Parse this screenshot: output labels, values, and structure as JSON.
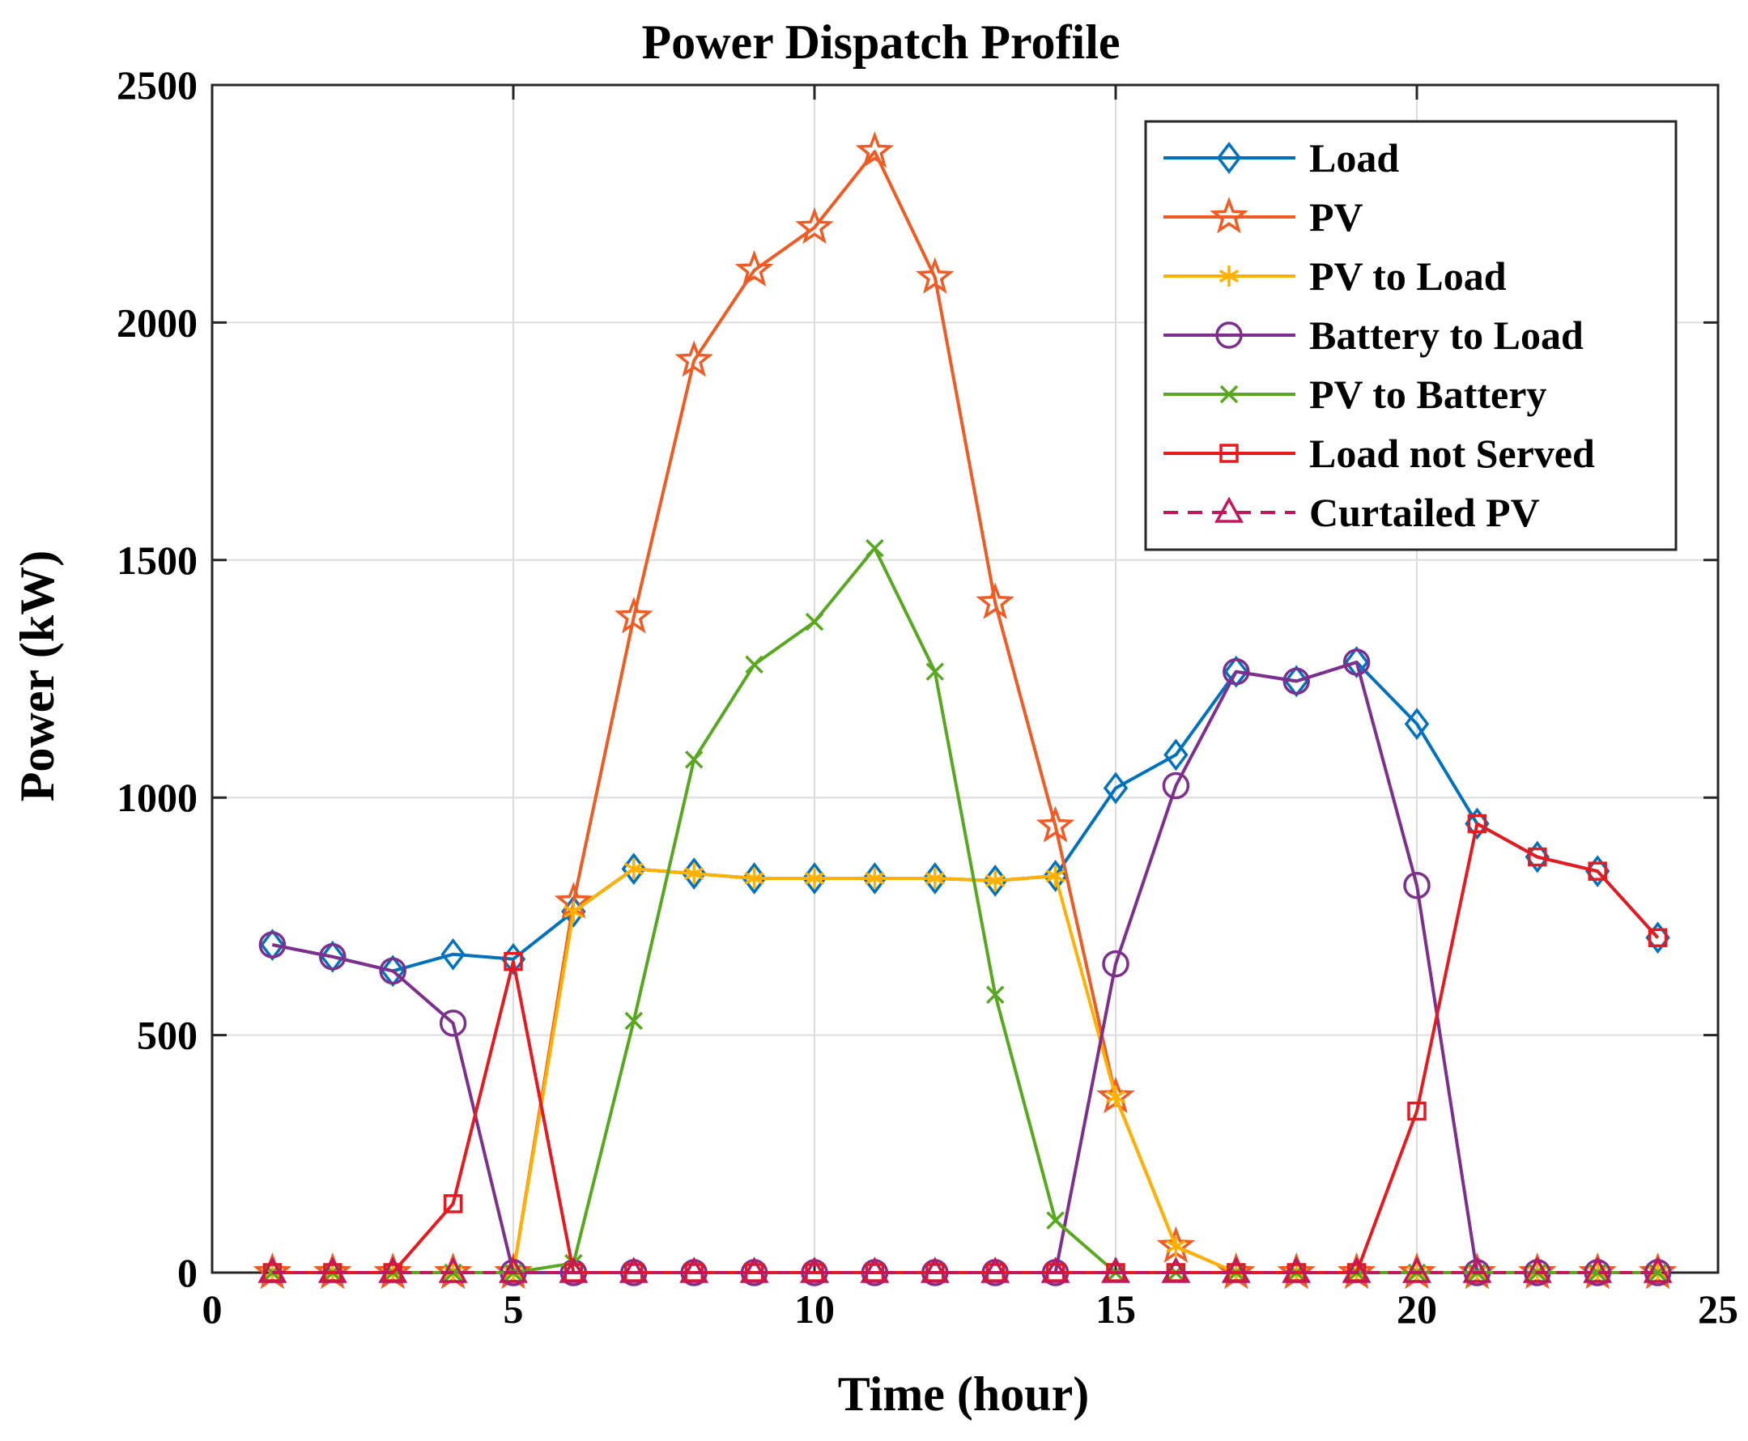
{
  "chart_data": {
    "type": "line",
    "title": "Power Dispatch Profile",
    "xlabel": "Time (hour)",
    "ylabel": "Power (kW)",
    "xlim": [
      0,
      25
    ],
    "ylim": [
      0,
      2500
    ],
    "xticks": [
      0,
      5,
      10,
      15,
      20,
      25
    ],
    "yticks": [
      0,
      500,
      1000,
      1500,
      2000,
      2500
    ],
    "grid": true,
    "legend_position": "top-right",
    "x": [
      1,
      2,
      3,
      4,
      5,
      6,
      7,
      8,
      9,
      10,
      11,
      12,
      13,
      14,
      15,
      16,
      17,
      18,
      19,
      20,
      21,
      22,
      23,
      24
    ],
    "series": [
      {
        "name": "Load",
        "color": "#0072BD",
        "marker": "diamond",
        "dash": "solid",
        "values": [
          690,
          665,
          635,
          670,
          660,
          760,
          850,
          840,
          830,
          830,
          830,
          830,
          825,
          835,
          1020,
          1090,
          1265,
          1245,
          1285,
          1155,
          945,
          875,
          845,
          705
        ]
      },
      {
        "name": "PV",
        "color": "#F05A23",
        "marker": "pentagram",
        "dash": "solid",
        "values": [
          0,
          0,
          0,
          0,
          0,
          780,
          1380,
          1920,
          2110,
          2200,
          2360,
          2095,
          1410,
          940,
          370,
          55,
          0,
          0,
          0,
          0,
          0,
          0,
          0,
          0
        ]
      },
      {
        "name": "PV to Load",
        "color": "#FFB000",
        "marker": "asterisk",
        "dash": "solid",
        "values": [
          0,
          0,
          0,
          0,
          0,
          760,
          850,
          840,
          830,
          830,
          830,
          830,
          825,
          835,
          370,
          55,
          0,
          0,
          0,
          0,
          0,
          0,
          0,
          0
        ]
      },
      {
        "name": "Battery to Load",
        "color": "#7E2F8E",
        "marker": "circle",
        "dash": "solid",
        "values": [
          690,
          665,
          635,
          525,
          0,
          0,
          0,
          0,
          0,
          0,
          0,
          0,
          0,
          0,
          650,
          1025,
          1265,
          1245,
          1285,
          815,
          0,
          0,
          0,
          0
        ]
      },
      {
        "name": "PV to Battery",
        "color": "#57A81F",
        "marker": "x",
        "dash": "solid",
        "values": [
          0,
          0,
          0,
          0,
          0,
          20,
          530,
          1080,
          1280,
          1370,
          1525,
          1265,
          585,
          110,
          0,
          0,
          0,
          0,
          0,
          0,
          0,
          0,
          0,
          0
        ]
      },
      {
        "name": "Load not Served",
        "color": "#E8191E",
        "marker": "square",
        "dash": "solid",
        "values": [
          0,
          0,
          0,
          145,
          655,
          0,
          0,
          0,
          0,
          0,
          0,
          0,
          0,
          0,
          0,
          0,
          0,
          0,
          0,
          340,
          945,
          875,
          845,
          705
        ]
      },
      {
        "name": "Curtailed PV",
        "color": "#C2185B",
        "marker": "triangle",
        "dash": "dashed",
        "values": [
          0,
          0,
          0,
          0,
          0,
          0,
          0,
          0,
          0,
          0,
          0,
          0,
          0,
          0,
          0,
          0,
          0,
          0,
          0,
          0,
          0,
          0,
          0,
          0
        ]
      }
    ]
  }
}
